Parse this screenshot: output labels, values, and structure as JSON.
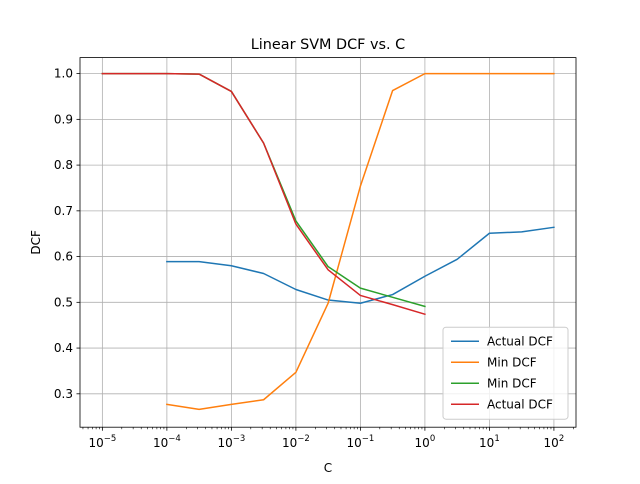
{
  "chart_data": {
    "type": "line",
    "title": "Linear SVM DCF vs. C",
    "xlabel": "C",
    "ylabel": "DCF",
    "xscale": "log",
    "xlim": [
      4.5e-06,
      220
    ],
    "ylim": [
      0.227,
      1.035
    ],
    "grid": true,
    "legend_position": "lower-right",
    "x_ticks": [
      {
        "value": 1e-05,
        "base": "10",
        "exp": "−5"
      },
      {
        "value": 0.0001,
        "base": "10",
        "exp": "−4"
      },
      {
        "value": 0.001,
        "base": "10",
        "exp": "−3"
      },
      {
        "value": 0.01,
        "base": "10",
        "exp": "−2"
      },
      {
        "value": 0.1,
        "base": "10",
        "exp": "−1"
      },
      {
        "value": 1,
        "base": "10",
        "exp": "0"
      },
      {
        "value": 10,
        "base": "10",
        "exp": "1"
      },
      {
        "value": 100,
        "base": "10",
        "exp": "2"
      }
    ],
    "y_ticks": [
      {
        "value": 0.3,
        "label": "0.3"
      },
      {
        "value": 0.4,
        "label": "0.4"
      },
      {
        "value": 0.5,
        "label": "0.5"
      },
      {
        "value": 0.6,
        "label": "0.6"
      },
      {
        "value": 0.7,
        "label": "0.7"
      },
      {
        "value": 0.8,
        "label": "0.8"
      },
      {
        "value": 0.9,
        "label": "0.9"
      },
      {
        "value": 1.0,
        "label": "1.0"
      }
    ],
    "series": [
      {
        "name": "Actual DCF",
        "color": "#1f77b4",
        "x": [
          0.0001,
          0.000316,
          0.001,
          0.00316,
          0.01,
          0.0316,
          0.1,
          0.316,
          1,
          3.16,
          10,
          31.6,
          100
        ],
        "y": [
          0.589,
          0.589,
          0.58,
          0.563,
          0.528,
          0.505,
          0.498,
          0.517,
          0.557,
          0.594,
          0.651,
          0.654,
          0.664
        ]
      },
      {
        "name": "Min DCF",
        "color": "#ff7f0e",
        "x": [
          0.0001,
          0.000316,
          0.001,
          0.00316,
          0.01,
          0.0316,
          0.1,
          0.316,
          1,
          3.16,
          10,
          31.6,
          100
        ],
        "y": [
          0.277,
          0.266,
          0.277,
          0.287,
          0.347,
          0.498,
          0.754,
          0.963,
          1.0,
          1.0,
          1.0,
          1.0,
          1.0
        ]
      },
      {
        "name": "Min DCF",
        "color": "#2ca02c",
        "x": [
          1e-05,
          0.0001,
          0.000316,
          0.001,
          0.00316,
          0.01,
          0.0316,
          0.1,
          0.316,
          1
        ],
        "y": [
          1.0,
          1.0,
          0.999,
          0.961,
          0.848,
          0.678,
          0.578,
          0.531,
          0.511,
          0.491
        ]
      },
      {
        "name": "Actual DCF",
        "color": "#d62728",
        "x": [
          1e-05,
          0.0001,
          0.000316,
          0.001,
          0.00316,
          0.01,
          0.0316,
          0.1,
          0.316,
          1
        ],
        "y": [
          1.0,
          1.0,
          0.999,
          0.961,
          0.848,
          0.671,
          0.571,
          0.515,
          0.495,
          0.474
        ]
      }
    ]
  }
}
